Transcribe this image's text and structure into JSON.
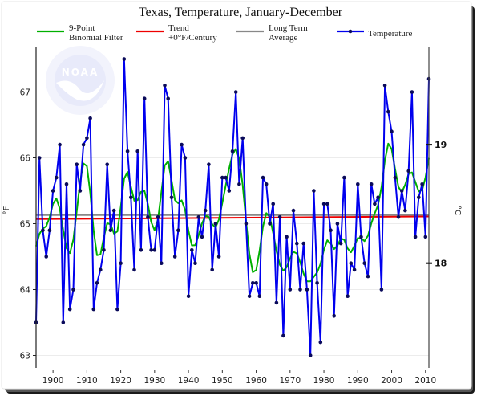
{
  "chart_data": {
    "type": "line",
    "title": "Texas, Temperature, January-December",
    "xlabel": "",
    "ylabel": "°F",
    "ylabel_right": "°C",
    "xlim": [
      1895,
      2011
    ],
    "ylim": [
      62.8,
      67.8
    ],
    "x_ticks": [
      1900,
      1910,
      1920,
      1930,
      1940,
      1950,
      1960,
      1970,
      1980,
      1990,
      2000,
      2010
    ],
    "y_ticks": [
      63,
      64,
      65,
      66,
      67
    ],
    "y_ticks_right": [
      {
        "label": "18",
        "value_f": 64.4
      },
      {
        "label": "19",
        "value_f": 66.2
      }
    ],
    "grid": true,
    "legend_position": "top",
    "watermark": "NOAA",
    "legend": [
      {
        "key": "filter",
        "line1": "9-Point",
        "line2": "Binomial Filter",
        "color": "#00b000"
      },
      {
        "key": "trend",
        "line1": "Trend",
        "line2": "+0°F/Century",
        "color": "#ee0000"
      },
      {
        "key": "average",
        "line1": "Long Term",
        "line2": "Average",
        "color": "#888888"
      },
      {
        "key": "temperature",
        "line1": "Temperature",
        "line2": "",
        "color": "#0000ee"
      }
    ],
    "series": [
      {
        "name": "Temperature",
        "color": "#0000ee",
        "x": [
          1895,
          1896,
          1897,
          1898,
          1899,
          1900,
          1901,
          1902,
          1903,
          1904,
          1905,
          1906,
          1907,
          1908,
          1909,
          1910,
          1911,
          1912,
          1913,
          1914,
          1915,
          1916,
          1917,
          1918,
          1919,
          1920,
          1921,
          1922,
          1923,
          1924,
          1925,
          1926,
          1927,
          1928,
          1929,
          1930,
          1931,
          1932,
          1933,
          1934,
          1935,
          1936,
          1937,
          1938,
          1939,
          1940,
          1941,
          1942,
          1943,
          1944,
          1945,
          1946,
          1947,
          1948,
          1949,
          1950,
          1951,
          1952,
          1953,
          1954,
          1955,
          1956,
          1957,
          1958,
          1959,
          1960,
          1961,
          1962,
          1963,
          1964,
          1965,
          1966,
          1967,
          1968,
          1969,
          1970,
          1971,
          1972,
          1973,
          1974,
          1975,
          1976,
          1977,
          1978,
          1979,
          1980,
          1981,
          1982,
          1983,
          1984,
          1985,
          1986,
          1987,
          1988,
          1989,
          1990,
          1991,
          1992,
          1993,
          1994,
          1995,
          1996,
          1997,
          1998,
          1999,
          2000,
          2001,
          2002,
          2003,
          2004,
          2005,
          2006,
          2007,
          2008,
          2009,
          2010,
          2011
        ],
        "values": [
          63.5,
          66.0,
          64.9,
          64.5,
          64.9,
          65.5,
          65.7,
          66.2,
          63.5,
          65.6,
          63.7,
          64.0,
          65.9,
          65.5,
          66.2,
          66.3,
          66.6,
          63.7,
          64.1,
          64.3,
          64.6,
          65.9,
          64.9,
          65.2,
          63.7,
          64.4,
          67.5,
          66.1,
          65.4,
          64.3,
          66.1,
          64.6,
          66.9,
          65.1,
          64.6,
          64.6,
          65.1,
          64.4,
          67.1,
          66.9,
          65.4,
          64.5,
          64.9,
          66.2,
          66.0,
          63.9,
          64.6,
          64.4,
          65.1,
          64.8,
          65.2,
          65.9,
          64.3,
          65.0,
          64.5,
          65.7,
          65.7,
          65.5,
          66.1,
          67.0,
          65.6,
          66.3,
          65.0,
          63.9,
          64.1,
          64.1,
          63.9,
          65.7,
          65.6,
          65.0,
          65.3,
          63.8,
          65.1,
          63.3,
          64.8,
          64.0,
          65.2,
          64.7,
          64.0,
          64.7,
          64.0,
          63.0,
          65.5,
          64.1,
          63.2,
          65.3,
          65.3,
          64.9,
          63.6,
          65.0,
          64.7,
          65.7,
          63.9,
          64.4,
          64.3,
          65.6,
          64.8,
          64.4,
          64.2,
          65.6,
          65.3,
          65.4,
          64.0,
          67.1,
          66.7,
          66.4,
          65.7,
          65.1,
          65.5,
          65.2,
          65.8,
          67.0,
          64.8,
          65.4,
          65.6,
          64.8,
          67.2
        ]
      },
      {
        "name": "9-Point Binomial Filter",
        "color": "#00b000",
        "derived_from": "Temperature"
      },
      {
        "name": "Trend +0°F/Century",
        "color": "#ee0000",
        "x": [
          1895,
          2011
        ],
        "values": [
          65.07,
          65.11
        ]
      },
      {
        "name": "Long Term Average",
        "color": "#888888",
        "x": [
          1895,
          2011
        ],
        "values": [
          65.1,
          65.1
        ]
      }
    ]
  }
}
